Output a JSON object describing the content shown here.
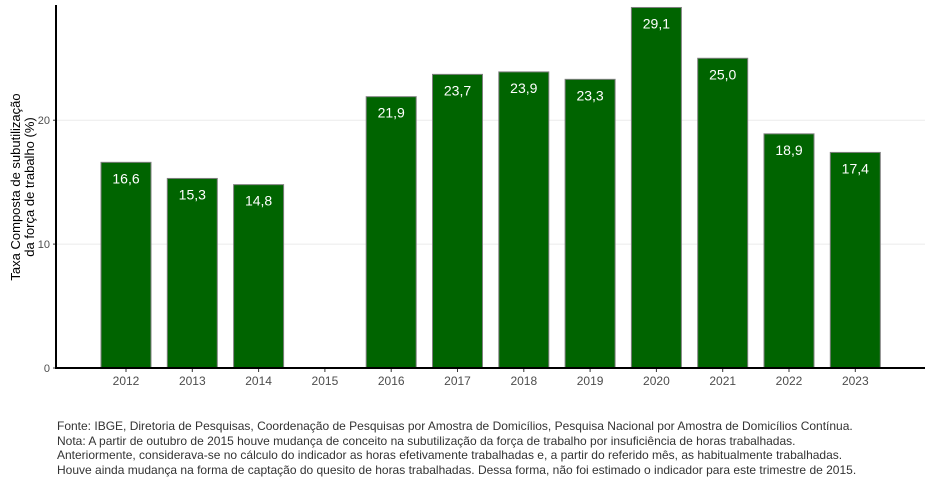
{
  "chart_data": {
    "type": "bar",
    "title": "",
    "xlabel": "",
    "ylabel": "Taxa Composta de subutilização\nda força de trabalho (%)",
    "categories": [
      "2012",
      "2013",
      "2014",
      "2015",
      "2016",
      "2017",
      "2018",
      "2019",
      "2020",
      "2021",
      "2022",
      "2023"
    ],
    "values": [
      16.6,
      15.3,
      14.8,
      null,
      21.9,
      23.7,
      23.9,
      23.3,
      29.1,
      25.0,
      18.9,
      17.4
    ],
    "data_labels": [
      "16,6",
      "15,3",
      "14,8",
      "",
      "21,9",
      "23,7",
      "23,9",
      "23,3",
      "29,1",
      "25,0",
      "18,9",
      "17,4"
    ],
    "yticks": [
      0,
      10,
      20
    ],
    "ylim": [
      0,
      29.3
    ],
    "grid": "horizontal major",
    "legend": "none",
    "colors": {
      "bar": "#006400",
      "bar_outline": "#7f7f7f",
      "label": "#ffffff",
      "grid": "#ebebeb",
      "axis": "#000000"
    }
  },
  "footnotes": [
    "Fonte: IBGE, Diretoria de Pesquisas, Coordenação de Pesquisas por Amostra de Domicílios, Pesquisa Nacional por Amostra de Domicílios Contínua.",
    "Nota: A partir de outubro de 2015 houve mudança de conceito na subutilização da força de trabalho por insuficiência de horas trabalhadas.",
    "Anteriormente, considerava-se no cálculo do indicador as horas efetivamente trabalhadas e, a partir do referido mês, as habitualmente trabalhadas.",
    "Houve ainda mudança na forma de captação do quesito de horas trabalhadas. Dessa forma, não foi estimado o indicador para este trimestre de 2015."
  ]
}
